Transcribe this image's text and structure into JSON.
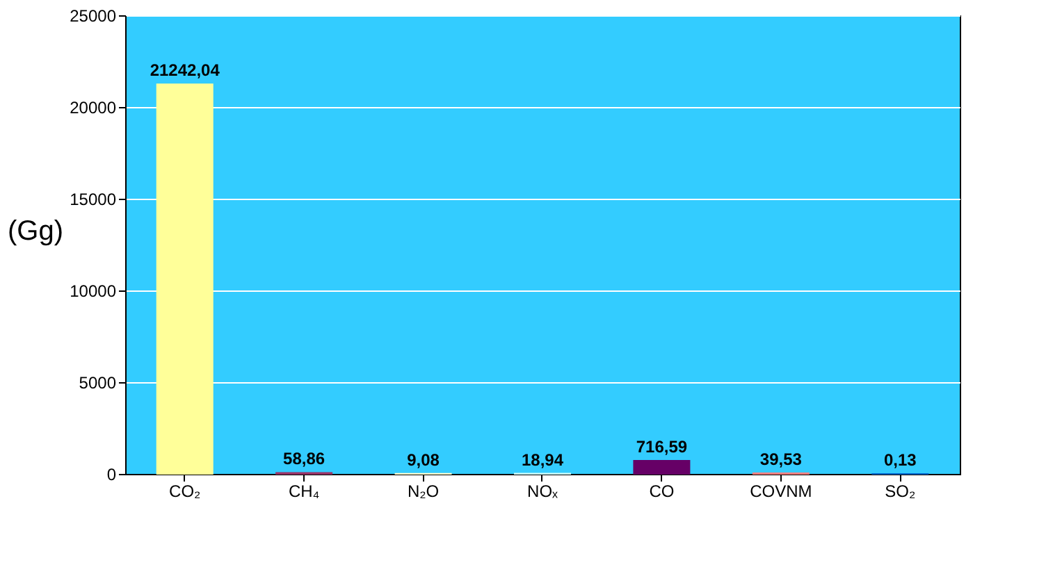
{
  "chart_data": {
    "type": "bar",
    "ylabel": "(Gg)",
    "categories": [
      "CO₂",
      "CH₄",
      "N₂O",
      "NOₓ",
      "CO",
      "COVNM",
      "SO₂"
    ],
    "values": [
      21242.04,
      58.86,
      9.08,
      18.94,
      716.59,
      39.53,
      0.13
    ],
    "colors": [
      "#ffff99",
      "#993366",
      "#ffffcc",
      "#ccffff",
      "#660066",
      "#ff8080",
      "#0066cc"
    ],
    "value_labels": [
      "21242,04",
      "58,86",
      "9,08",
      "18,94",
      "716,59",
      "39,53",
      "0,13"
    ],
    "ylim": [
      0,
      25000
    ],
    "yticks": [
      0,
      5000,
      10000,
      15000,
      20000,
      25000
    ],
    "grid": "y",
    "legend": false
  }
}
